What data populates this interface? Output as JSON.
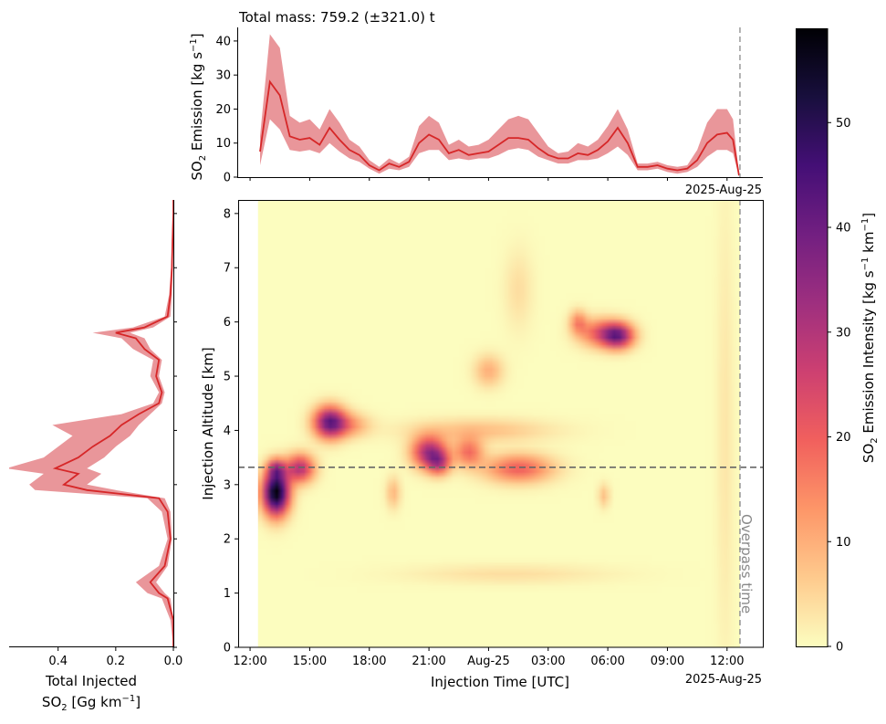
{
  "colors": {
    "line": "#d62728",
    "band": "#e06a6f",
    "band_opacity": 0.7,
    "colormap": [
      "#fcfdbf",
      "#feca8d",
      "#fd9668",
      "#f1605d",
      "#cd4071",
      "#9e2f7f",
      "#721f81",
      "#440f76",
      "#180f3d",
      "#000004"
    ],
    "overpass_line": "#999999",
    "altitude_line": "#666666"
  },
  "top_panel": {
    "title": "Total mass: 759.2 (±321.0) t",
    "ylabel_main": "SO",
    "ylabel_sub": "2",
    "ylabel_rest": " Emission [kg s",
    "ylabel_sup": "−1",
    "ylabel_close": "]",
    "yticks": [
      "0",
      "10",
      "20",
      "30",
      "40"
    ],
    "date_label": "2025-Aug-25"
  },
  "main_panel": {
    "xlabel": "Injection Time [UTC]",
    "ylabel": "Injection Altitude [km]",
    "xticks": [
      "12:00",
      "15:00",
      "18:00",
      "21:00",
      "Aug-25",
      "03:00",
      "06:00",
      "09:00",
      "12:00"
    ],
    "yticks": [
      "0",
      "1",
      "2",
      "3",
      "4",
      "5",
      "6",
      "7",
      "8"
    ],
    "date_label": "2025-Aug-25",
    "overpass_label": "Overpass time"
  },
  "left_panel": {
    "xticks": [
      "0.4",
      "0.2",
      "0.0"
    ],
    "xlabel_line1": "Total Injected",
    "xlabel_line2_main": "SO",
    "xlabel_line2_sub": "2",
    "xlabel_line2_rest": " [Gg km",
    "xlabel_line2_sup": "−1",
    "xlabel_line2_close": "]"
  },
  "colorbar": {
    "label_main": "SO",
    "label_sub": "2",
    "label_rest": " Emission Intensity [kg s",
    "label_sup1": "−1",
    "label_mid": " km",
    "label_sup2": "−1",
    "label_close": "]",
    "ticks": [
      "0",
      "10",
      "20",
      "30",
      "40",
      "50"
    ]
  },
  "chart_data": [
    {
      "type": "area",
      "panel": "top",
      "x_unit": "hours since 2025-08-24 12:00 UTC",
      "x_range": [
        -0.6,
        25.8
      ],
      "ylim": [
        0,
        44
      ],
      "x": [
        0.5,
        1.0,
        1.5,
        2.0,
        2.5,
        3.0,
        3.5,
        4.0,
        4.5,
        5.0,
        5.5,
        6.0,
        6.5,
        7.0,
        7.5,
        8.0,
        8.5,
        9.0,
        9.5,
        10.0,
        10.5,
        11.0,
        11.5,
        12.0,
        12.5,
        13.0,
        13.5,
        14.0,
        14.5,
        15.0,
        15.5,
        16.0,
        16.5,
        17.0,
        17.5,
        18.0,
        18.5,
        19.0,
        19.5,
        20.0,
        20.5,
        21.0,
        21.5,
        22.0,
        22.5,
        23.0,
        23.5,
        24.0,
        24.3,
        24.6
      ],
      "median": [
        7.5,
        28,
        24,
        12,
        11,
        11.5,
        9.5,
        14.5,
        11,
        8,
        6.5,
        3.5,
        2,
        4,
        3,
        4.5,
        10,
        12.5,
        11,
        7,
        8,
        6.5,
        7,
        7.5,
        9.5,
        11.5,
        11.5,
        11,
        8.5,
        6.5,
        5.5,
        5.5,
        7,
        6.5,
        8,
        10.5,
        14.5,
        10,
        3,
        3,
        3.5,
        2.5,
        2,
        2.5,
        5,
        10,
        12.5,
        13,
        11,
        0.5
      ],
      "lower": [
        3.5,
        17,
        14,
        8,
        7.5,
        8,
        7,
        10,
        7.5,
        5.5,
        4.5,
        2.5,
        1,
        2.5,
        2,
        3,
        7,
        8,
        8,
        5,
        5.5,
        5,
        5.5,
        5.5,
        6.5,
        8,
        8.5,
        8,
        6,
        5,
        4,
        4,
        5,
        5,
        5.5,
        7,
        9,
        6.5,
        2,
        2,
        2.5,
        1.5,
        1,
        1.5,
        3,
        6,
        8,
        8,
        7,
        0.2
      ],
      "upper": [
        12,
        42,
        38,
        18,
        16,
        17,
        14,
        20,
        16,
        11,
        9,
        5,
        3,
        5.5,
        4,
        6,
        15,
        18,
        16,
        9.5,
        11,
        9,
        9.5,
        11,
        14,
        17,
        18,
        17,
        13,
        9,
        7,
        7.5,
        10,
        9,
        11,
        15,
        20,
        14,
        4,
        4,
        4.5,
        3.5,
        3,
        3.5,
        8,
        16,
        20,
        20,
        17,
        1.0
      ],
      "overpass_x": 24.65
    },
    {
      "type": "heatmap",
      "panel": "main",
      "x_unit": "hours since 2025-08-24 12:00 UTC",
      "xlim": [
        -0.6,
        25.8
      ],
      "ylim": [
        0,
        8.25
      ],
      "data_x_range": [
        0.4,
        24.65
      ],
      "zlim": [
        0,
        59
      ],
      "hotspots": [
        {
          "x": 1.3,
          "y": 2.85,
          "peak": 59,
          "sx": 0.45,
          "sy": 0.28
        },
        {
          "x": 2.5,
          "y": 3.3,
          "peak": 30,
          "sx": 0.5,
          "sy": 0.18
        },
        {
          "x": 1.3,
          "y": 3.3,
          "peak": 22,
          "sx": 0.3,
          "sy": 0.12
        },
        {
          "x": 4.0,
          "y": 4.15,
          "peak": 40,
          "sx": 0.55,
          "sy": 0.2
        },
        {
          "x": 5.0,
          "y": 4.1,
          "peak": 12,
          "sx": 0.7,
          "sy": 0.15
        },
        {
          "x": 9.0,
          "y": 3.6,
          "peak": 32,
          "sx": 0.6,
          "sy": 0.2
        },
        {
          "x": 9.5,
          "y": 3.4,
          "peak": 22,
          "sx": 0.4,
          "sy": 0.15
        },
        {
          "x": 11.0,
          "y": 3.6,
          "peak": 18,
          "sx": 0.5,
          "sy": 0.18
        },
        {
          "x": 13.5,
          "y": 3.3,
          "peak": 20,
          "sx": 1.2,
          "sy": 0.18
        },
        {
          "x": 11.5,
          "y": 4.0,
          "peak": 8,
          "sx": 2.5,
          "sy": 0.15
        },
        {
          "x": 18.5,
          "y": 5.75,
          "peak": 38,
          "sx": 0.55,
          "sy": 0.16
        },
        {
          "x": 17.5,
          "y": 5.8,
          "peak": 18,
          "sx": 0.7,
          "sy": 0.18
        },
        {
          "x": 16.5,
          "y": 6.0,
          "peak": 14,
          "sx": 0.3,
          "sy": 0.15
        },
        {
          "x": 12.0,
          "y": 5.1,
          "peak": 10,
          "sx": 0.5,
          "sy": 0.2
        },
        {
          "x": 7.2,
          "y": 2.85,
          "peak": 9,
          "sx": 0.25,
          "sy": 0.2
        },
        {
          "x": 17.8,
          "y": 2.8,
          "peak": 8,
          "sx": 0.2,
          "sy": 0.15
        },
        {
          "x": 13.0,
          "y": 1.35,
          "peak": 4,
          "sx": 3.5,
          "sy": 0.12
        },
        {
          "x": 13.5,
          "y": 6.6,
          "peak": 4,
          "sx": 0.5,
          "sy": 0.5
        },
        {
          "x": 23.9,
          "y": 4.0,
          "peak": 3,
          "sx": 0.3,
          "sy": 3.0
        }
      ],
      "altitude_line_y": 3.32,
      "overpass_x": 24.65
    },
    {
      "type": "area",
      "panel": "left",
      "x_unit": "Gg km^-1",
      "xlim": [
        0.57,
        0.0
      ],
      "ylim": [
        0,
        8.25
      ],
      "y": [
        0.0,
        0.5,
        0.9,
        1.0,
        1.2,
        1.5,
        2.0,
        2.5,
        2.75,
        2.9,
        3.0,
        3.2,
        3.3,
        3.5,
        3.7,
        3.9,
        4.1,
        4.3,
        4.5,
        4.7,
        5.0,
        5.3,
        5.5,
        5.7,
        5.8,
        5.9,
        6.1,
        6.5,
        7.0,
        7.5,
        8.0,
        8.25
      ],
      "median": [
        0.0,
        0.0,
        0.02,
        0.05,
        0.08,
        0.03,
        0.01,
        0.02,
        0.05,
        0.3,
        0.38,
        0.33,
        0.41,
        0.33,
        0.28,
        0.22,
        0.18,
        0.12,
        0.05,
        0.04,
        0.06,
        0.05,
        0.1,
        0.13,
        0.2,
        0.1,
        0.02,
        0.01,
        0.005,
        0.003,
        0.0,
        0.0
      ],
      "lower": [
        0.0,
        0.0,
        0.01,
        0.03,
        0.06,
        0.02,
        0.005,
        0.01,
        0.03,
        0.2,
        0.3,
        0.25,
        0.3,
        0.24,
        0.2,
        0.15,
        0.12,
        0.08,
        0.04,
        0.03,
        0.05,
        0.04,
        0.08,
        0.1,
        0.15,
        0.07,
        0.01,
        0.005,
        0.002,
        0.001,
        0.0,
        0.0
      ],
      "upper": [
        0.0,
        0.01,
        0.04,
        0.09,
        0.13,
        0.05,
        0.02,
        0.04,
        0.09,
        0.48,
        0.5,
        0.45,
        0.58,
        0.45,
        0.4,
        0.35,
        0.42,
        0.18,
        0.07,
        0.05,
        0.08,
        0.07,
        0.14,
        0.18,
        0.28,
        0.14,
        0.03,
        0.015,
        0.008,
        0.005,
        0.002,
        0.0
      ]
    }
  ]
}
